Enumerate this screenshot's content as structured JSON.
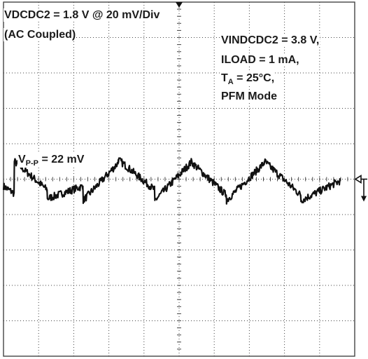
{
  "annotations": {
    "channel": "VDCDC2 = 1.8 V @ 20 mV/Div",
    "coupling": "(AC Coupled)",
    "conditions": {
      "vin": "VINDCDC2 = 3.8 V,",
      "iload": "ILOAD = 1 mA,",
      "temp_main": "T",
      "temp_sub": "A",
      "temp_value": " = 25°C,",
      "mode": "PFM Mode"
    },
    "vpp_main": "V",
    "vpp_sub": "P-P",
    "vpp_value": " = 22 mV"
  },
  "colors": {
    "trace": "#111111",
    "grid": "#444444",
    "background": "#ffffff"
  },
  "chart_data": {
    "type": "line",
    "title": "",
    "xlabel": "",
    "ylabel": "",
    "grid": true,
    "x_divisions": 10,
    "y_divisions": 10,
    "ylim": [
      -100,
      100
    ],
    "xlim": [
      0,
      10
    ],
    "ripple_peak_to_peak_mV": 22,
    "series": [
      {
        "x": [
          0.0,
          0.3,
          0.31,
          1.24,
          1.25,
          2.26,
          2.27,
          3.26,
          3.27,
          4.3,
          4.31,
          5.32,
          5.33,
          6.34,
          6.35,
          7.42,
          7.43,
          8.46,
          8.47,
          9.58
        ],
        "y": [
          -4,
          -8,
          10,
          -6,
          -11,
          -4,
          -12,
          9,
          11,
          -6,
          -12,
          9,
          10,
          -9,
          -12,
          9,
          10,
          -9,
          -12,
          -1
        ]
      }
    ]
  }
}
